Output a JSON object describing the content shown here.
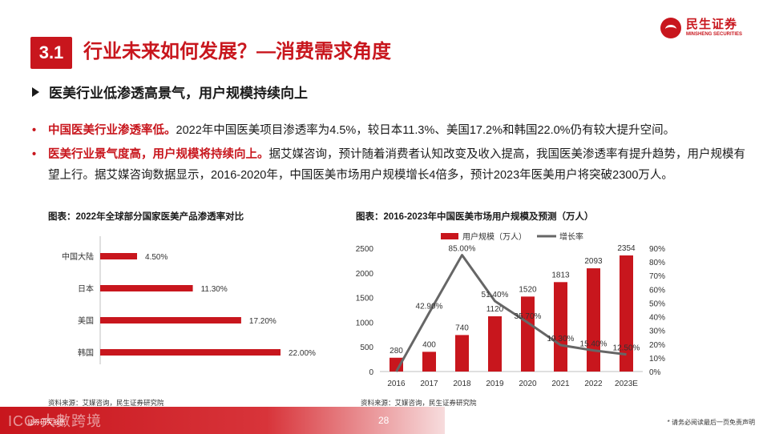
{
  "brand": {
    "name_cn": "民生证券",
    "name_en": "MINSHENG SECURITIES",
    "color": "#c8161d"
  },
  "section": {
    "number": "3.1",
    "title": "行业未来如何发展？—消费需求角度"
  },
  "headline": "医美行业低渗透高景气，用户规模持续向上",
  "bullets": [
    {
      "bold": "中国医美行业渗透率低。",
      "text": "2022年中国医美项目渗透率为4.5%，较日本11.3%、美国17.2%和韩国22.0%仍有较大提升空间。"
    },
    {
      "bold": "医美行业景气度高，用户规模将持续向上。",
      "text": "据艾媒咨询，预计随着消费者认知改变及收入提高，我国医美渗透率有提升趋势，用户规模有望上行。据艾媒咨询数据显示，2016-2020年，中国医美市场用户规模增长4倍多，预计2023年医美用户将突破2300万人。"
    }
  ],
  "chart_data": [
    {
      "type": "bar",
      "orientation": "horizontal",
      "title": "图表：2022年全球部分国家医美产品渗透率对比",
      "categories": [
        "中国大陆",
        "日本",
        "美国",
        "韩国"
      ],
      "values": [
        4.5,
        11.3,
        17.2,
        22.0
      ],
      "value_labels": [
        "4.50%",
        "11.30%",
        "17.20%",
        "22.00%"
      ],
      "bar_color": "#c8161d",
      "source": "资料来源：艾媒咨询，民生证券研究院"
    },
    {
      "type": "bar",
      "title": "图表：2016-2023年中国医美市场用户规模及预测（万人）",
      "categories": [
        "2016",
        "2017",
        "2018",
        "2019",
        "2020",
        "2021",
        "2022",
        "2023E"
      ],
      "series": [
        {
          "name": "用户规模（万人）",
          "type": "bar",
          "axis": "left",
          "color": "#c8161d",
          "values": [
            280,
            400,
            740,
            1120,
            1520,
            1813,
            2093,
            2354
          ],
          "labels": [
            "280",
            "400",
            "740",
            "1120",
            "1520",
            "1813",
            "2093",
            "2354"
          ]
        },
        {
          "name": "增长率",
          "type": "line",
          "axis": "right",
          "color": "#666666",
          "values": [
            null,
            42.9,
            85.0,
            51.4,
            35.7,
            19.3,
            15.4,
            12.5
          ],
          "labels": [
            "",
            "42.90%",
            "85.00%",
            "51.40%",
            "35.70%",
            "19.30%",
            "15.40%",
            "12.50%"
          ]
        }
      ],
      "left_ticks": [
        "0",
        "500",
        "1000",
        "1500",
        "2000",
        "2500"
      ],
      "right_ticks": [
        "0%",
        "10%",
        "20%",
        "30%",
        "40%",
        "50%",
        "60%",
        "70%",
        "80%",
        "90%"
      ],
      "ylim_left": [
        0,
        2500
      ],
      "ylim_right": [
        0,
        90
      ],
      "legend_position": "top",
      "source": "资料来源：艾媒咨询，民生证券研究院"
    }
  ],
  "footer": {
    "watermark": "ICO 大數跨境",
    "watermark_sub": "证券研究报告",
    "page": "28",
    "disclaimer": "* 请务必阅读最后一页免责声明"
  }
}
